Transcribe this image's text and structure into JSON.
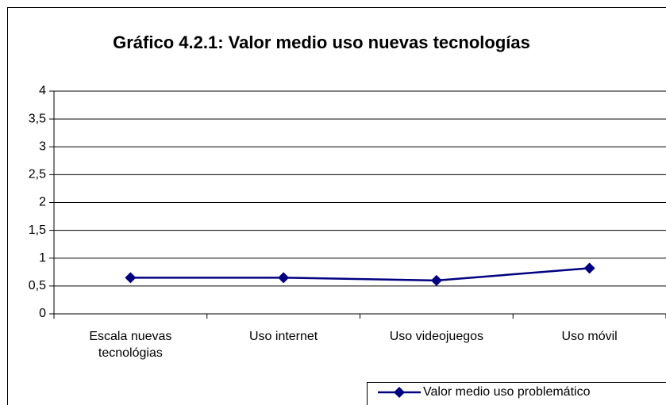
{
  "chart_data": {
    "type": "line",
    "title": "Gráfico 4.2.1: Valor medio uso  nuevas tecnologías",
    "categories": [
      "Escala nuevas tecnológias",
      "Uso internet",
      "Uso videojuegos",
      "Uso móvil"
    ],
    "series": [
      {
        "name": "Valor medio uso problemático",
        "color": "#000080",
        "values": [
          0.65,
          0.65,
          0.6,
          0.82
        ]
      }
    ],
    "ylim": [
      0,
      4
    ],
    "yticks": [
      0,
      {
        "value": 0.5,
        "label": "0,5"
      },
      1,
      {
        "value": 1.5,
        "label": "1,5"
      },
      2,
      {
        "value": 2.5,
        "label": "2,5"
      },
      3,
      {
        "value": 3.5,
        "label": "3,5"
      },
      4
    ],
    "grid": true,
    "legend": "bottom-right"
  }
}
